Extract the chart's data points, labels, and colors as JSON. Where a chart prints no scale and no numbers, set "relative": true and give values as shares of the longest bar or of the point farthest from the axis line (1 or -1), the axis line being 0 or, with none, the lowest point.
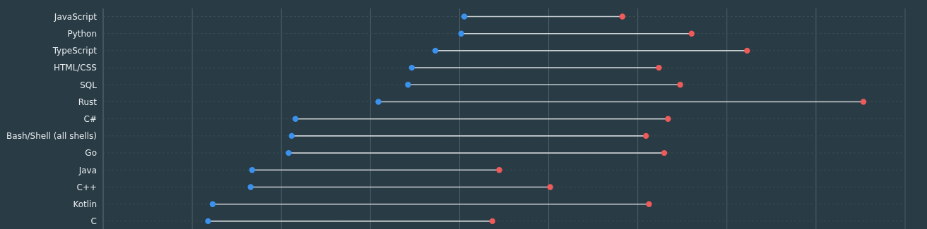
{
  "chart_data": {
    "type": "bar",
    "orientation": "horizontal",
    "relative": true,
    "grid": true,
    "categories": [
      "JavaScript",
      "Python",
      "TypeScript",
      "HTML/CSS",
      "SQL",
      "Rust",
      "C#",
      "Bash/Shell (all shells)",
      "Go",
      "Java",
      "C++",
      "Kotlin",
      "C"
    ],
    "series": [
      {
        "type": "scatter",
        "marker": "circle",
        "color": "#3a92ee",
        "values": [
          0.475,
          0.471,
          0.437,
          0.406,
          0.401,
          0.362,
          0.253,
          0.248,
          0.244,
          0.196,
          0.194,
          0.144,
          0.138
        ]
      },
      {
        "type": "scatter",
        "marker": "circle",
        "color": "#ef5a5a",
        "values": [
          0.683,
          0.774,
          0.847,
          0.731,
          0.759,
          1,
          0.743,
          0.714,
          0.738,
          0.521,
          0.588,
          0.718,
          0.512
        ]
      }
    ]
  }
}
